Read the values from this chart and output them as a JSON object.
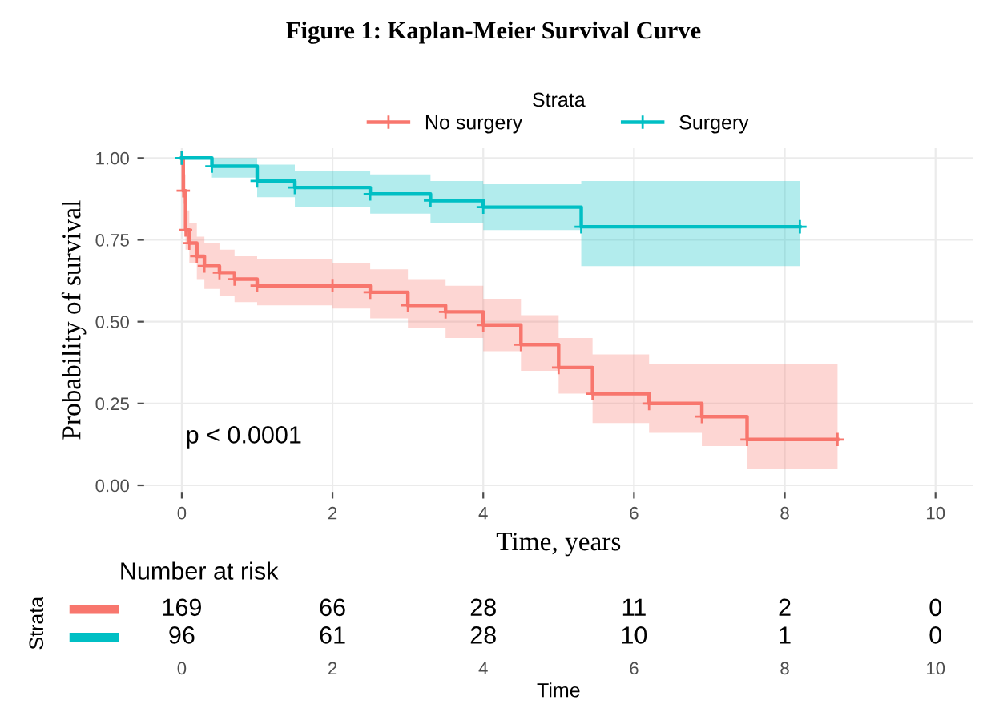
{
  "chart_data": [
    {
      "type": "step",
      "title": "Figure 1: Kaplan-Meier Survival Curve",
      "xlabel": "Time, years",
      "ylabel": "Probability of survival",
      "legend_title": "Strata",
      "legend": "top",
      "grid": true,
      "marker": "cross",
      "xlim": [
        -0.5,
        10.5
      ],
      "xticks": [
        0,
        2,
        4,
        6,
        8,
        10
      ],
      "ylim": [
        -0.02,
        1.03
      ],
      "yticks": [
        {
          "value": 0,
          "label": "0.00"
        },
        {
          "value": 0.25,
          "label": "0.25"
        },
        {
          "value": 0.5,
          "label": "0.50"
        },
        {
          "value": 0.75,
          "label": "0.75"
        },
        {
          "value": 1,
          "label": "1.00"
        }
      ],
      "annotations": [
        "p < 0.0001"
      ],
      "series": [
        {
          "name": "No surgery",
          "color": "#f8766d",
          "x": [
            0,
            0.02,
            0.05,
            0.1,
            0.2,
            0.3,
            0.5,
            0.7,
            1.0,
            2.0,
            2.5,
            3.0,
            3.5,
            4.0,
            4.5,
            5.0,
            5.45,
            6.2,
            6.9,
            7.5,
            8.7
          ],
          "values": [
            1.0,
            0.9,
            0.78,
            0.74,
            0.7,
            0.67,
            0.65,
            0.63,
            0.61,
            0.61,
            0.59,
            0.55,
            0.53,
            0.49,
            0.43,
            0.36,
            0.28,
            0.25,
            0.21,
            0.14,
            0.14
          ],
          "lower": [
            1.0,
            0.86,
            0.72,
            0.68,
            0.63,
            0.6,
            0.58,
            0.56,
            0.55,
            0.54,
            0.51,
            0.48,
            0.45,
            0.41,
            0.35,
            0.28,
            0.19,
            0.16,
            0.12,
            0.05,
            0.05
          ],
          "upper": [
            1.0,
            0.95,
            0.84,
            0.8,
            0.76,
            0.74,
            0.72,
            0.7,
            0.69,
            0.68,
            0.66,
            0.63,
            0.61,
            0.57,
            0.52,
            0.45,
            0.4,
            0.37,
            0.37,
            0.37,
            0.37
          ]
        },
        {
          "name": "Surgery",
          "color": "#00bfc4",
          "x": [
            0,
            0.4,
            1.0,
            1.5,
            2.5,
            3.3,
            4.0,
            5.3,
            8.2
          ],
          "values": [
            1.0,
            0.975,
            0.93,
            0.91,
            0.89,
            0.87,
            0.85,
            0.79,
            0.79
          ],
          "lower": [
            1.0,
            0.94,
            0.88,
            0.85,
            0.83,
            0.8,
            0.78,
            0.67,
            0.67
          ],
          "upper": [
            1.0,
            1.0,
            0.98,
            0.96,
            0.95,
            0.93,
            0.92,
            0.93,
            0.93
          ]
        }
      ]
    },
    {
      "type": "heatmap",
      "title": "Number at risk",
      "xlabel": "Time",
      "ylabel": "Strata",
      "data_labels": true,
      "colors": [
        "#f8766d",
        "#00bfc4"
      ],
      "categories": [
        "0",
        "2",
        "4",
        "6",
        "8",
        "10"
      ],
      "y_categories": [
        null,
        null
      ],
      "cells": [
        [
          169,
          66,
          28,
          11,
          2,
          0
        ],
        [
          96,
          61,
          28,
          10,
          1,
          0
        ]
      ]
    }
  ]
}
